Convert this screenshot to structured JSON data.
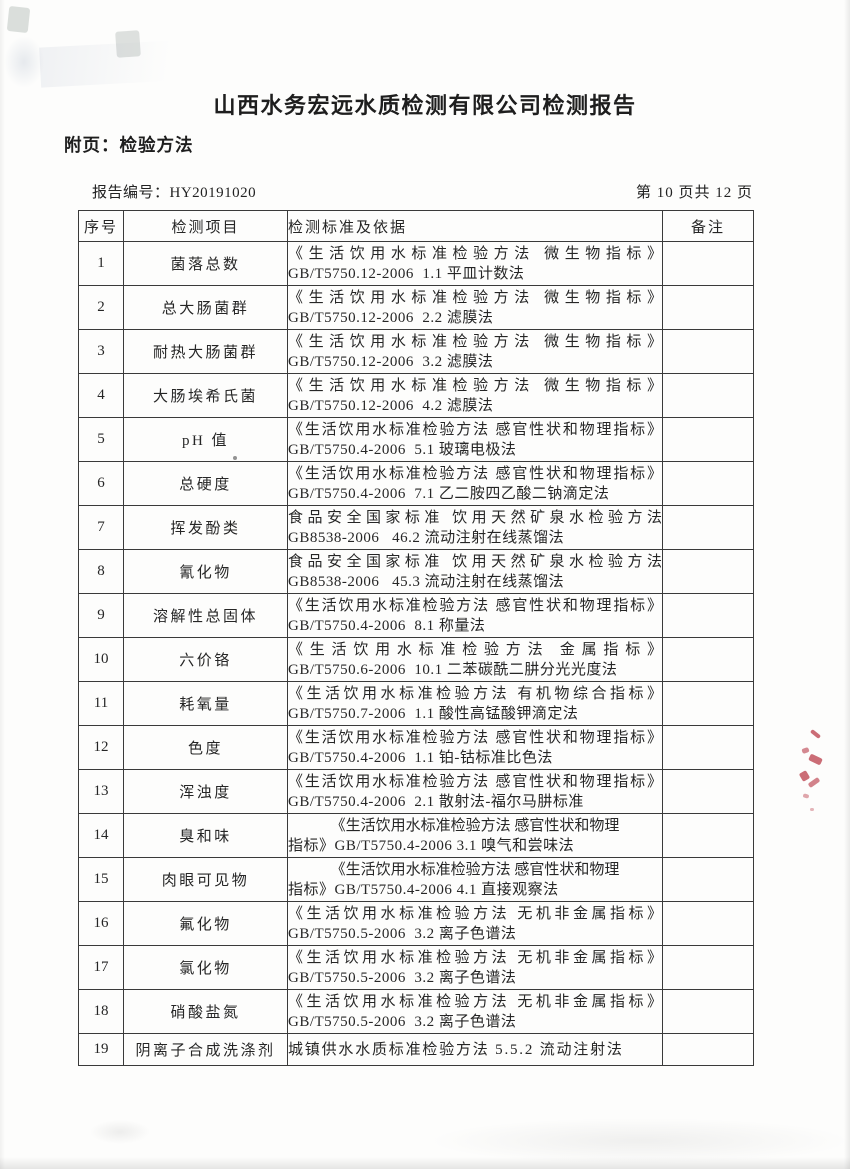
{
  "page": {
    "title": "山西水务宏远水质检测有限公司检测报告",
    "subtitle": "附页：检验方法",
    "report_no_label": "报告编号：",
    "report_no": "HY20191020",
    "page_info": "第 10 页共 12 页"
  },
  "table": {
    "headers": [
      "序号",
      "检测项目",
      "检测标准及依据",
      "备注"
    ],
    "rows": [
      {
        "no": "1",
        "item": "菌落总数",
        "line1": "《生活饮用水标准检验方法 微生物指标》",
        "line2": "GB/T5750.12-2006  1.1 平皿计数法",
        "note": ""
      },
      {
        "no": "2",
        "item": "总大肠菌群",
        "line1": "《生活饮用水标准检验方法 微生物指标》",
        "line2": "GB/T5750.12-2006  2.2 滤膜法",
        "note": ""
      },
      {
        "no": "3",
        "item": "耐热大肠菌群",
        "line1": "《生活饮用水标准检验方法 微生物指标》",
        "line2": "GB/T5750.12-2006  3.2 滤膜法",
        "note": ""
      },
      {
        "no": "4",
        "item": "大肠埃希氏菌",
        "line1": "《生活饮用水标准检验方法 微生物指标》",
        "line2": "GB/T5750.12-2006  4.2 滤膜法",
        "note": ""
      },
      {
        "no": "5",
        "item": "pH 值",
        "line1": "《生活饮用水标准检验方法 感官性状和物理指标》",
        "line2": "GB/T5750.4-2006  5.1 玻璃电极法",
        "note": ""
      },
      {
        "no": "6",
        "item": "总硬度",
        "line1": "《生活饮用水标准检验方法 感官性状和物理指标》",
        "line2": "GB/T5750.4-2006  7.1 乙二胺四乙酸二钠滴定法",
        "note": ""
      },
      {
        "no": "7",
        "item": "挥发酚类",
        "line1": "食品安全国家标准  饮用天然矿泉水检验方法",
        "line2": "GB8538-2006   46.2 流动注射在线蒸馏法",
        "note": ""
      },
      {
        "no": "8",
        "item": "氰化物",
        "line1": "食品安全国家标准  饮用天然矿泉水检验方法",
        "line2": "GB8538-2006   45.3 流动注射在线蒸馏法",
        "note": ""
      },
      {
        "no": "9",
        "item": "溶解性总固体",
        "line1": "《生活饮用水标准检验方法 感官性状和物理指标》",
        "line2": "GB/T5750.4-2006  8.1 称量法",
        "note": ""
      },
      {
        "no": "10",
        "item": "六价铬",
        "line1": "《生活饮用水标准检验方法 金属指标》",
        "line2": "GB/T5750.6-2006  10.1 二苯碳酰二肼分光光度法",
        "note": ""
      },
      {
        "no": "11",
        "item": "耗氧量",
        "line1": "《生活饮用水标准检验方法 有机物综合指标》",
        "line2": "GB/T5750.7-2006  1.1 酸性高锰酸钾滴定法",
        "note": ""
      },
      {
        "no": "12",
        "item": "色度",
        "line1": "《生活饮用水标准检验方法 感官性状和物理指标》",
        "line2": "GB/T5750.4-2006  1.1 铂-钴标准比色法",
        "note": ""
      },
      {
        "no": "13",
        "item": "浑浊度",
        "line1": "《生活饮用水标准检验方法 感官性状和物理指标》",
        "line2": "GB/T5750.4-2006  2.1 散射法-福尔马肼标准",
        "note": ""
      },
      {
        "no": "14",
        "item": "臭和味",
        "line1": "《生活饮用水标准检验方法 感官性状和物理",
        "line2": "指标》GB/T5750.4-2006 3.1 嗅气和尝味法",
        "note": ""
      },
      {
        "no": "15",
        "item": "肉眼可见物",
        "line1": "《生活饮用水标准检验方法 感官性状和物理",
        "line2": "指标》GB/T5750.4-2006 4.1 直接观察法",
        "note": ""
      },
      {
        "no": "16",
        "item": "氟化物",
        "line1": "《生活饮用水标准检验方法 无机非金属指标》",
        "line2": "GB/T5750.5-2006  3.2 离子色谱法",
        "note": ""
      },
      {
        "no": "17",
        "item": "氯化物",
        "line1": "《生活饮用水标准检验方法 无机非金属指标》",
        "line2": "GB/T5750.5-2006  3.2 离子色谱法",
        "note": ""
      },
      {
        "no": "18",
        "item": "硝酸盐氮",
        "line1": "《生活饮用水标准检验方法 无机非金属指标》",
        "line2": "GB/T5750.5-2006  3.2 离子色谱法",
        "note": ""
      },
      {
        "no": "19",
        "item": "阴离子合成洗涤剂",
        "line1": "城镇供水水质标准检验方法 5.5.2  流动注射法",
        "line2": "",
        "note": ""
      }
    ]
  },
  "artifacts": {
    "stamp_bleed_color": "#b73442",
    "scan_mark_color": "#607068",
    "description_stamp_bleed": "red seal ink bleed-through at right edge",
    "description_scan_marks": "faint scanner smudges at top-left corner"
  }
}
